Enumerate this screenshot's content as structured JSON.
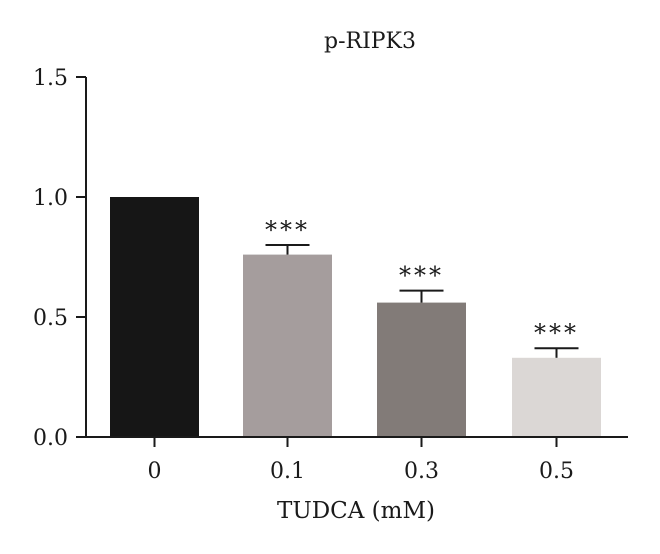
{
  "chart_data": {
    "type": "bar",
    "title": "p-RIPK3",
    "xlabel": "TUDCA (mM)",
    "ylabel": "",
    "categories": [
      "0",
      "0.1",
      "0.3",
      "0.5"
    ],
    "values": [
      1.0,
      0.76,
      0.56,
      0.33
    ],
    "errors": [
      0,
      0.04,
      0.05,
      0.04
    ],
    "significance": [
      "",
      "***",
      "***",
      "***"
    ],
    "colors": [
      "#161616",
      "#a59d9d",
      "#827b78",
      "#dbd7d5"
    ],
    "ylim": [
      0,
      1.5
    ],
    "yticks": [
      "0.0",
      "0.5",
      "1.0",
      "1.5"
    ],
    "grid": false
  }
}
